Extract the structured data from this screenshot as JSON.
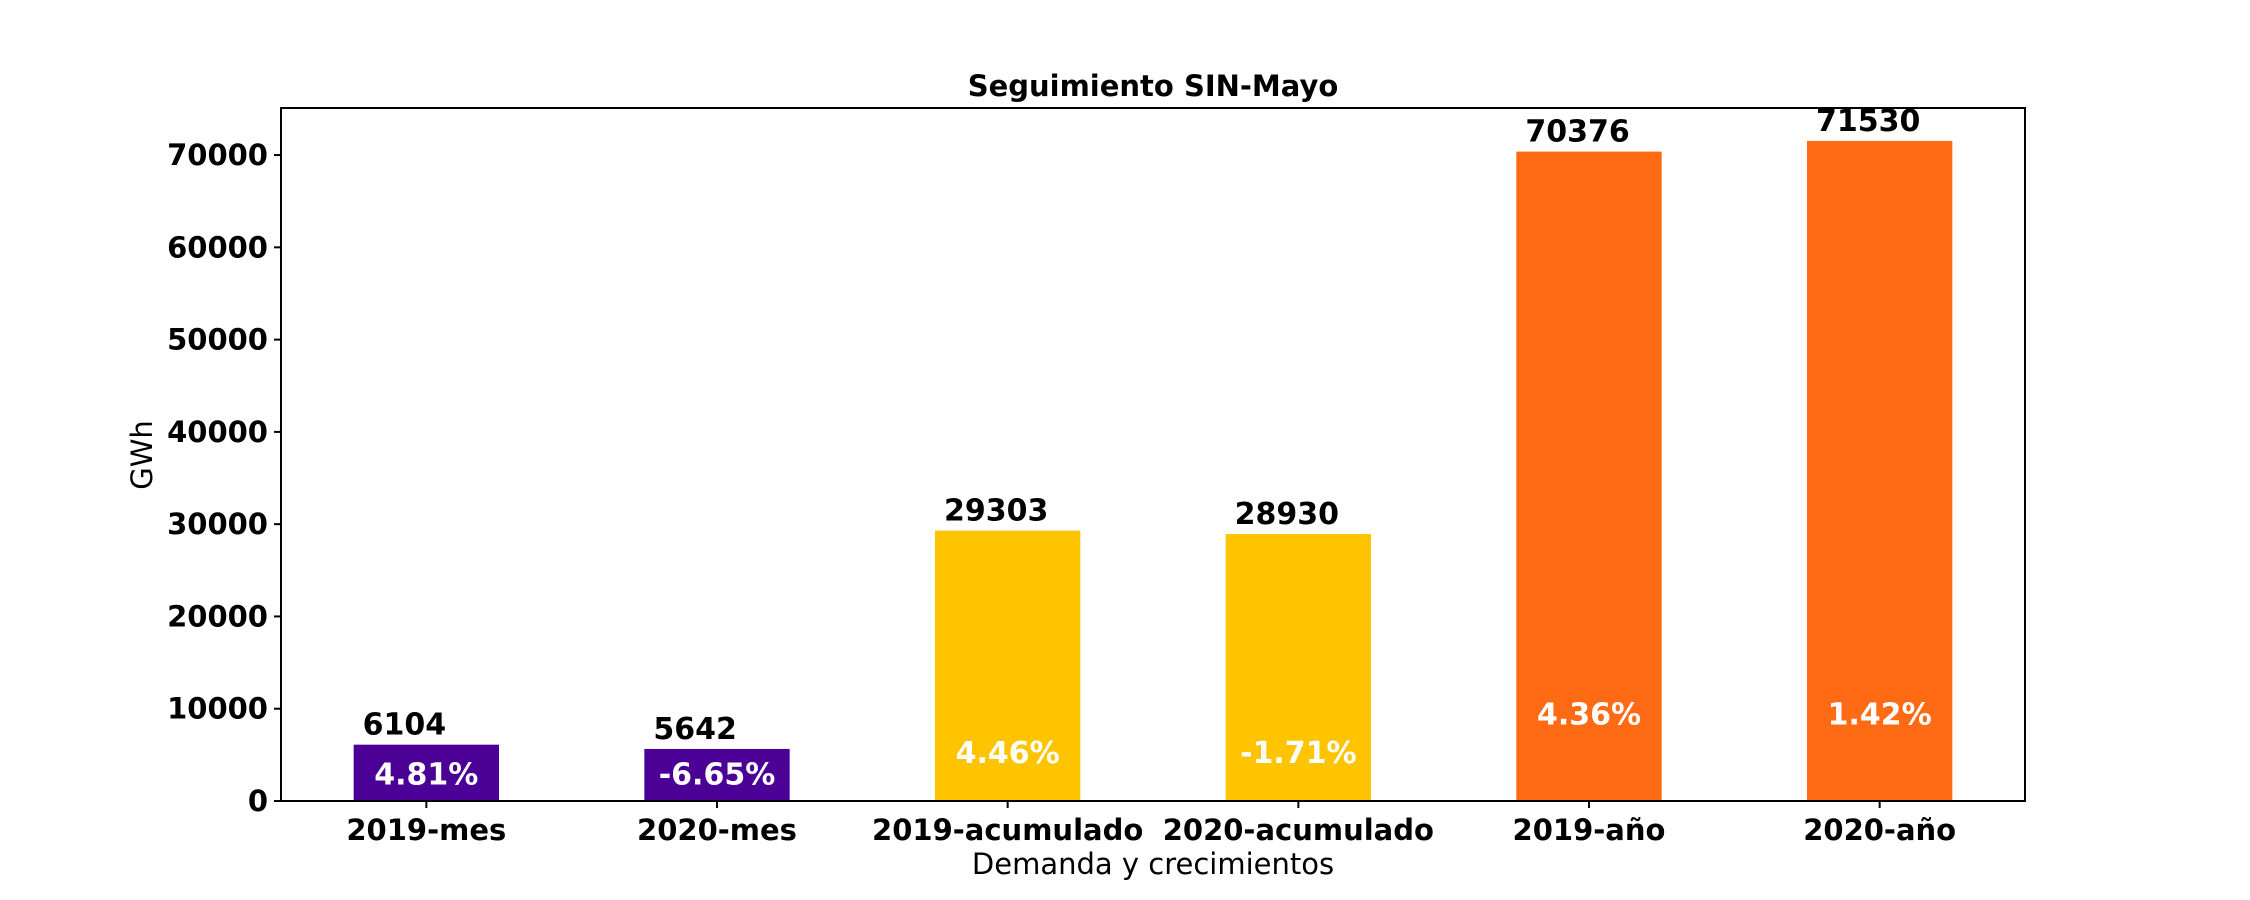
{
  "chart_data": {
    "type": "bar",
    "title": "Seguimiento SIN-Mayo",
    "xlabel": "Demanda y crecimientos",
    "ylabel": "GWh",
    "categories": [
      "2019-mes",
      "2020-mes",
      "2019-acumulado",
      "2020-acumulado",
      "2019-año",
      "2020-año"
    ],
    "values": [
      6104,
      5642,
      29303,
      28930,
      70376,
      71530
    ],
    "value_labels": [
      "6104",
      "5642",
      "29303",
      "28930",
      "70376",
      "71530"
    ],
    "growth_labels": [
      "4.81%",
      "-6.65%",
      "4.46%",
      "-1.71%",
      "4.36%",
      "1.42%"
    ],
    "bar_colors": [
      "#4B0096",
      "#4B0096",
      "#FFC400",
      "#FFC400",
      "#FF6A14",
      "#FF6A14"
    ],
    "yticks": [
      0,
      10000,
      20000,
      30000,
      40000,
      50000,
      60000,
      70000
    ],
    "ytick_labels": [
      "0",
      "10000",
      "20000",
      "30000",
      "40000",
      "50000",
      "60000",
      "70000"
    ],
    "ylim": [
      0,
      75100
    ],
    "grid": false,
    "legend": "none"
  }
}
